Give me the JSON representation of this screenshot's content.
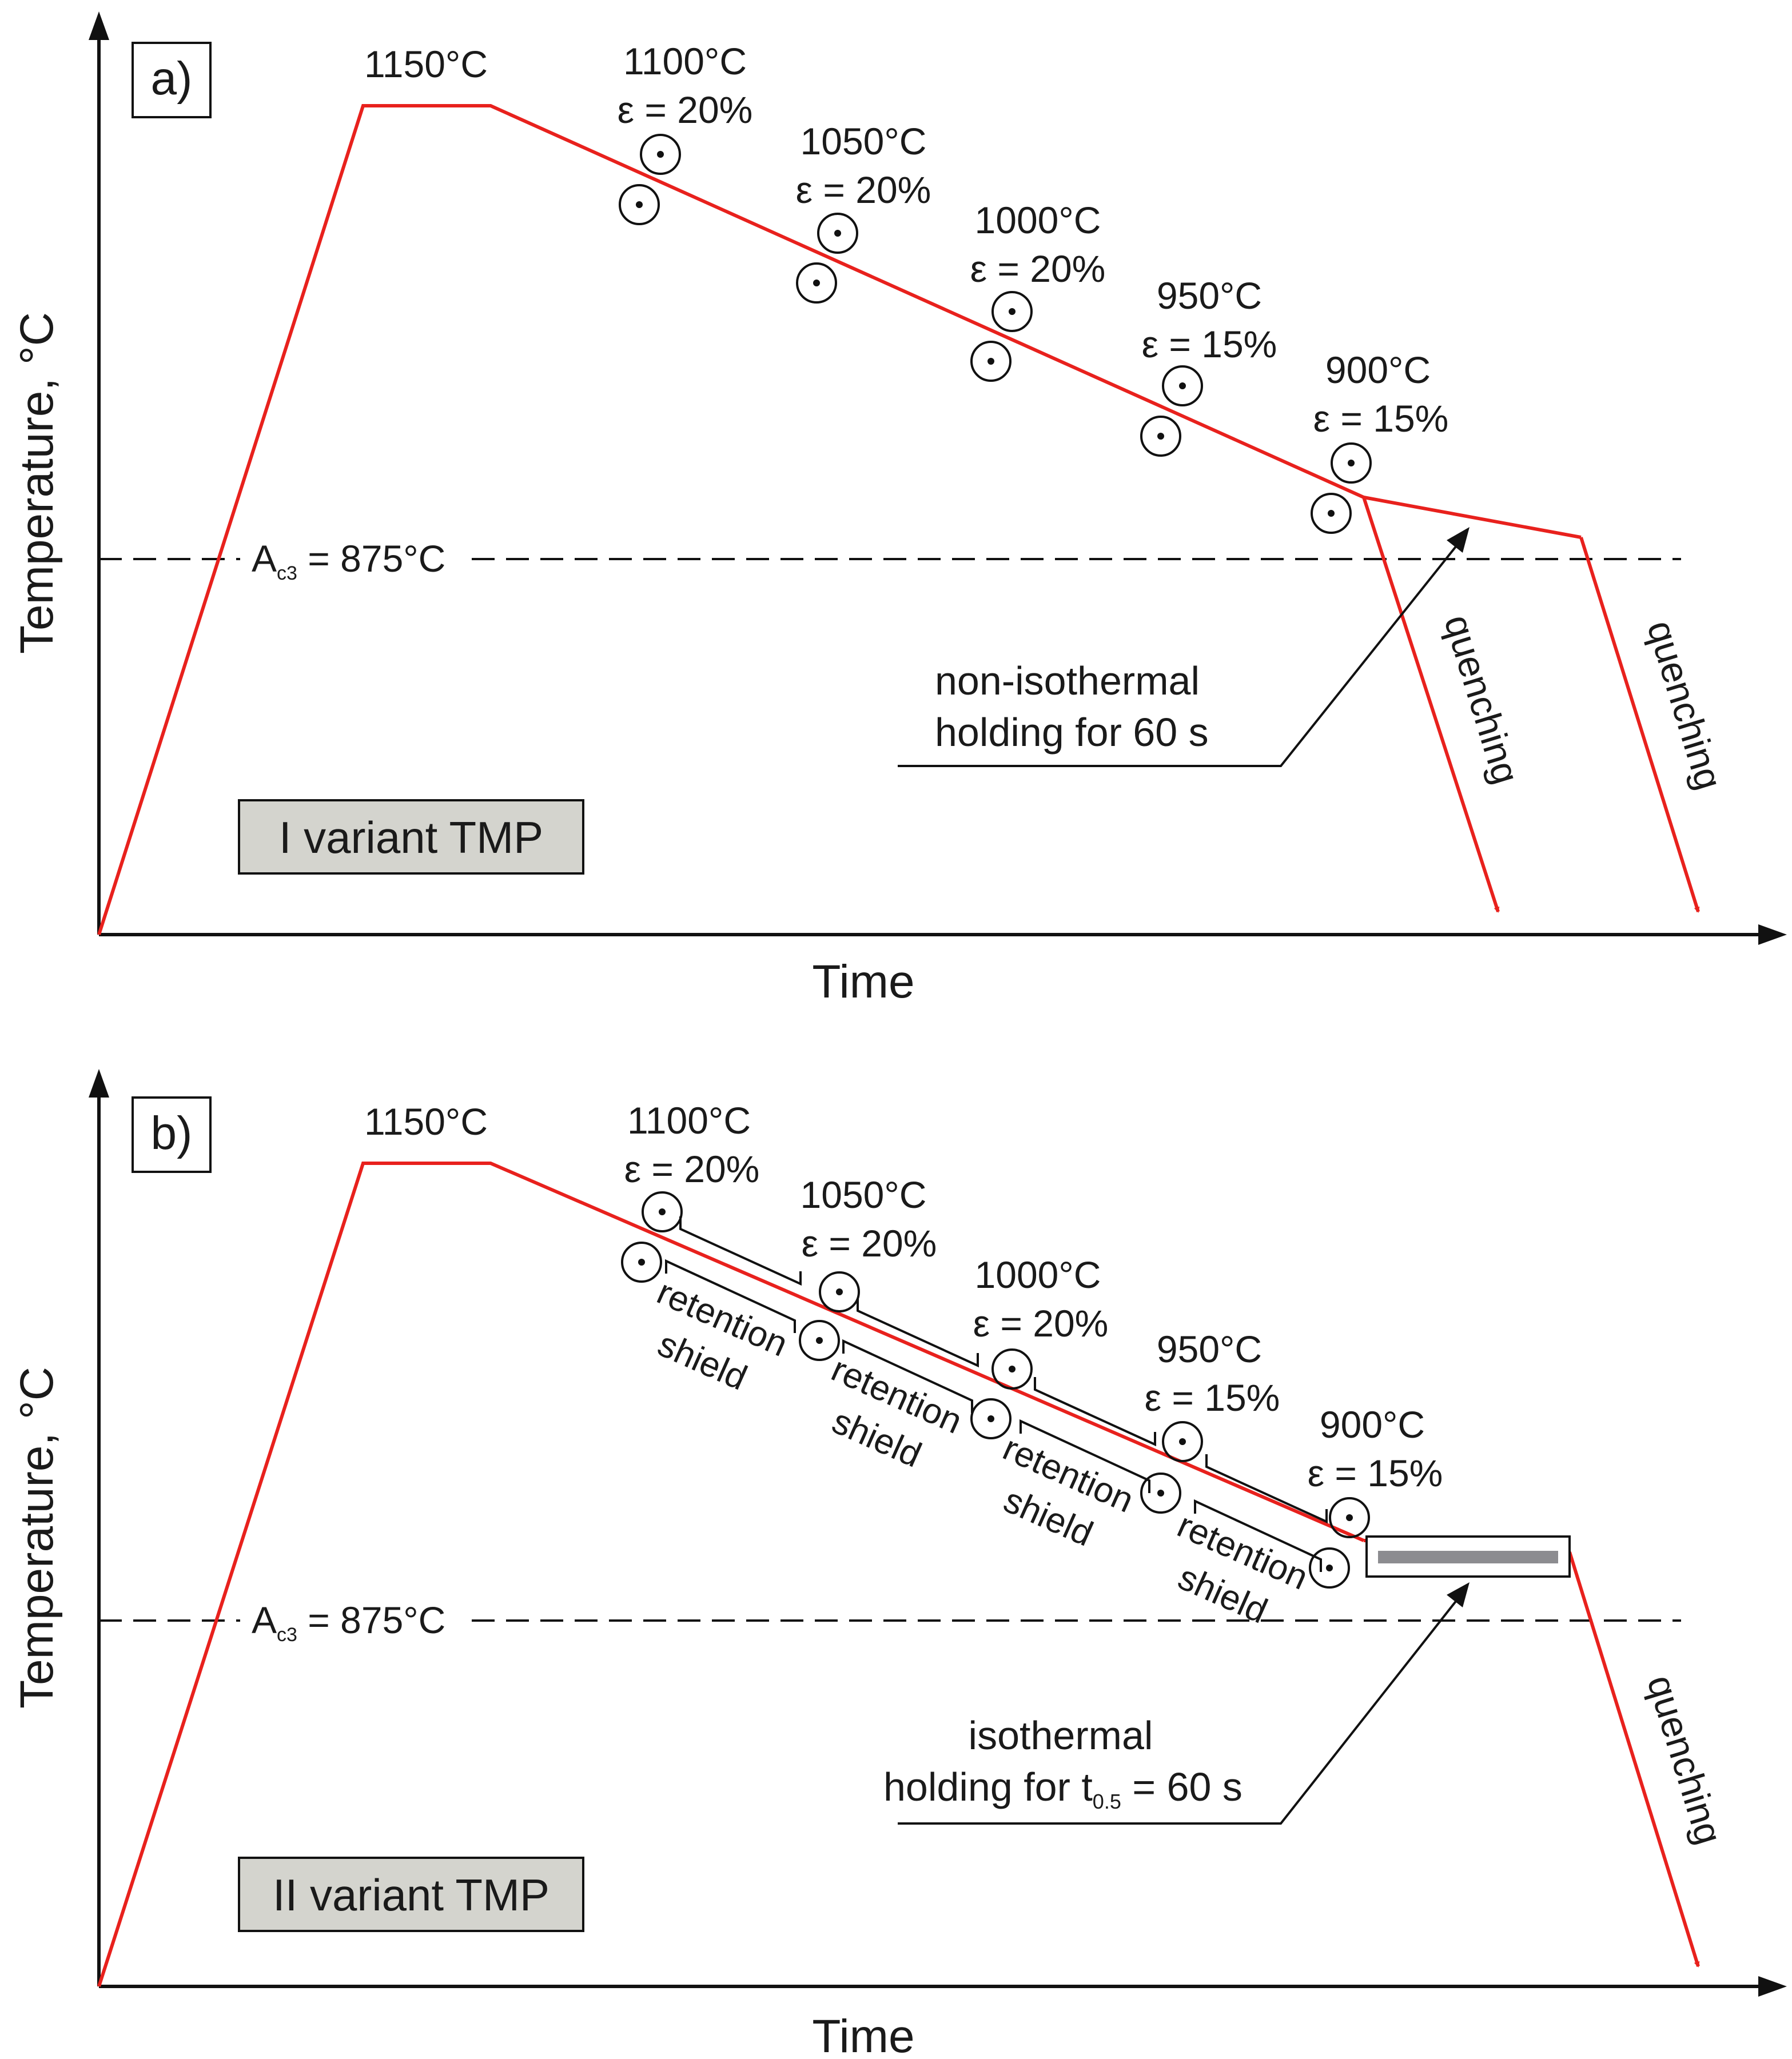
{
  "panels": [
    {
      "id": "a",
      "panel_label": "a)",
      "y_axis_label": "Temperature, °C",
      "x_axis_label": "Time",
      "start_temp": "1150°C",
      "ac3_main": "A",
      "ac3_sub": "c3",
      "ac3_value": " = 875°C",
      "steps": [
        {
          "temp": "1100°C",
          "strain": "ε = 20%"
        },
        {
          "temp": "1050°C",
          "strain": "ε = 20%"
        },
        {
          "temp": "1000°C",
          "strain": "ε = 20%"
        },
        {
          "temp": "950°C",
          "strain": "ε = 15%"
        },
        {
          "temp": "900°C",
          "strain": "ε = 15%"
        }
      ],
      "quench_labels": [
        "quenching",
        "quenching"
      ],
      "annotation_line1": "non-isothermal",
      "annotation_line2": "holding for 60 s",
      "variant_label": "I variant TMP"
    },
    {
      "id": "b",
      "panel_label": "b)",
      "y_axis_label": "Temperature, °C",
      "x_axis_label": "Time",
      "start_temp": "1150°C",
      "ac3_main": "A",
      "ac3_sub": "c3",
      "ac3_value": " = 875°C",
      "steps": [
        {
          "temp": "1100°C",
          "strain": "ε = 20%"
        },
        {
          "temp": "1050°C",
          "strain": "ε = 20%"
        },
        {
          "temp": "1000°C",
          "strain": "ε = 20%"
        },
        {
          "temp": "950°C",
          "strain": "ε = 15%"
        },
        {
          "temp": "900°C",
          "strain": "ε = 15%"
        }
      ],
      "shield_line1": "retention",
      "shield_line2": "shield",
      "quench_label": "quenching",
      "annotation_line1": "isothermal",
      "annotation_line2_prefix": "holding for t",
      "annotation_line2_sub": "0.5",
      "annotation_line2_suffix": " = 60 s",
      "variant_label": "II variant TMP"
    }
  ],
  "colors": {
    "profile": "#e8211d",
    "axis": "#111111",
    "text": "#1a1a1a",
    "variant_box": "#d4d4ce",
    "hold_bar": "#8c8c90"
  }
}
